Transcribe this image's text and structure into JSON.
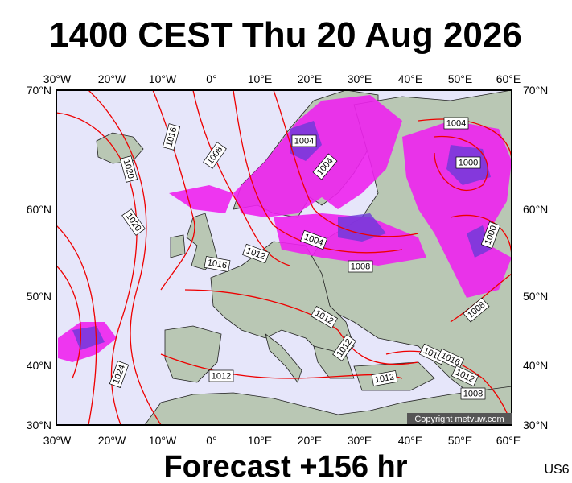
{
  "title": "1400 CEST Thu 20 Aug 2026",
  "footer": "Forecast +156 hr",
  "model_code": "US6",
  "copyright": "Copyright metvuw.com",
  "longitude_labels": [
    "30°W",
    "20°W",
    "10°W",
    "0°",
    "10°E",
    "20°E",
    "30°E",
    "40°E",
    "50°E",
    "60°E"
  ],
  "latitude_labels": [
    "70°N",
    "60°N",
    "50°N",
    "40°N",
    "30°N"
  ],
  "isobar_labels": [
    "1016",
    "1008",
    "1020",
    "1020",
    "1024",
    "1016",
    "1012",
    "1004",
    "1004",
    "1004",
    "1008",
    "1004",
    "1000",
    "1000",
    "1008",
    "1012",
    "1012",
    "1012",
    "1012",
    "1016",
    "1016",
    "1012",
    "1008"
  ]
}
